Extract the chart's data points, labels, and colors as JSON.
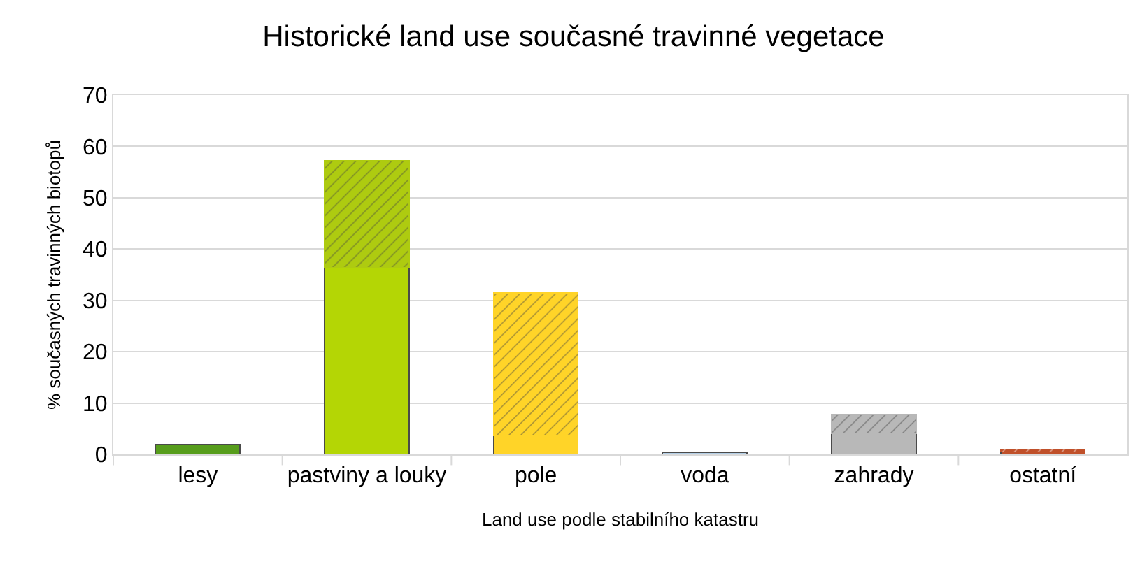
{
  "chart_data": {
    "type": "bar",
    "title": "Historické land use současné travinné vegetace",
    "xlabel": "Land use podle stabilního katastru",
    "ylabel": "% současných travinných biotopů",
    "categories": [
      "lesy",
      "pastviny a louky",
      "pole",
      "voda",
      "zahrady",
      "ostatní"
    ],
    "stacked": true,
    "series": [
      {
        "colors": [
          "#579d1c",
          "#b4d605",
          "#ffd428",
          "#b4cfe6",
          "#b8b8b8",
          "#c0502a"
        ],
        "values": [
          2.0,
          36.4,
          3.7,
          0.4,
          4.0,
          0.5
        ]
      },
      {
        "colors": [
          "#579d1c",
          "#aecb10",
          "#ffd428",
          "#b4cfe6",
          "#b8b8b8",
          "#c0502a"
        ],
        "values": [
          null,
          20.8,
          27.8,
          null,
          3.8,
          0.5
        ]
      }
    ],
    "ylim": [
      0,
      70
    ],
    "yticks": [
      0,
      10,
      20,
      30,
      40,
      50,
      60,
      70
    ],
    "grid": "y",
    "legend": false
  }
}
